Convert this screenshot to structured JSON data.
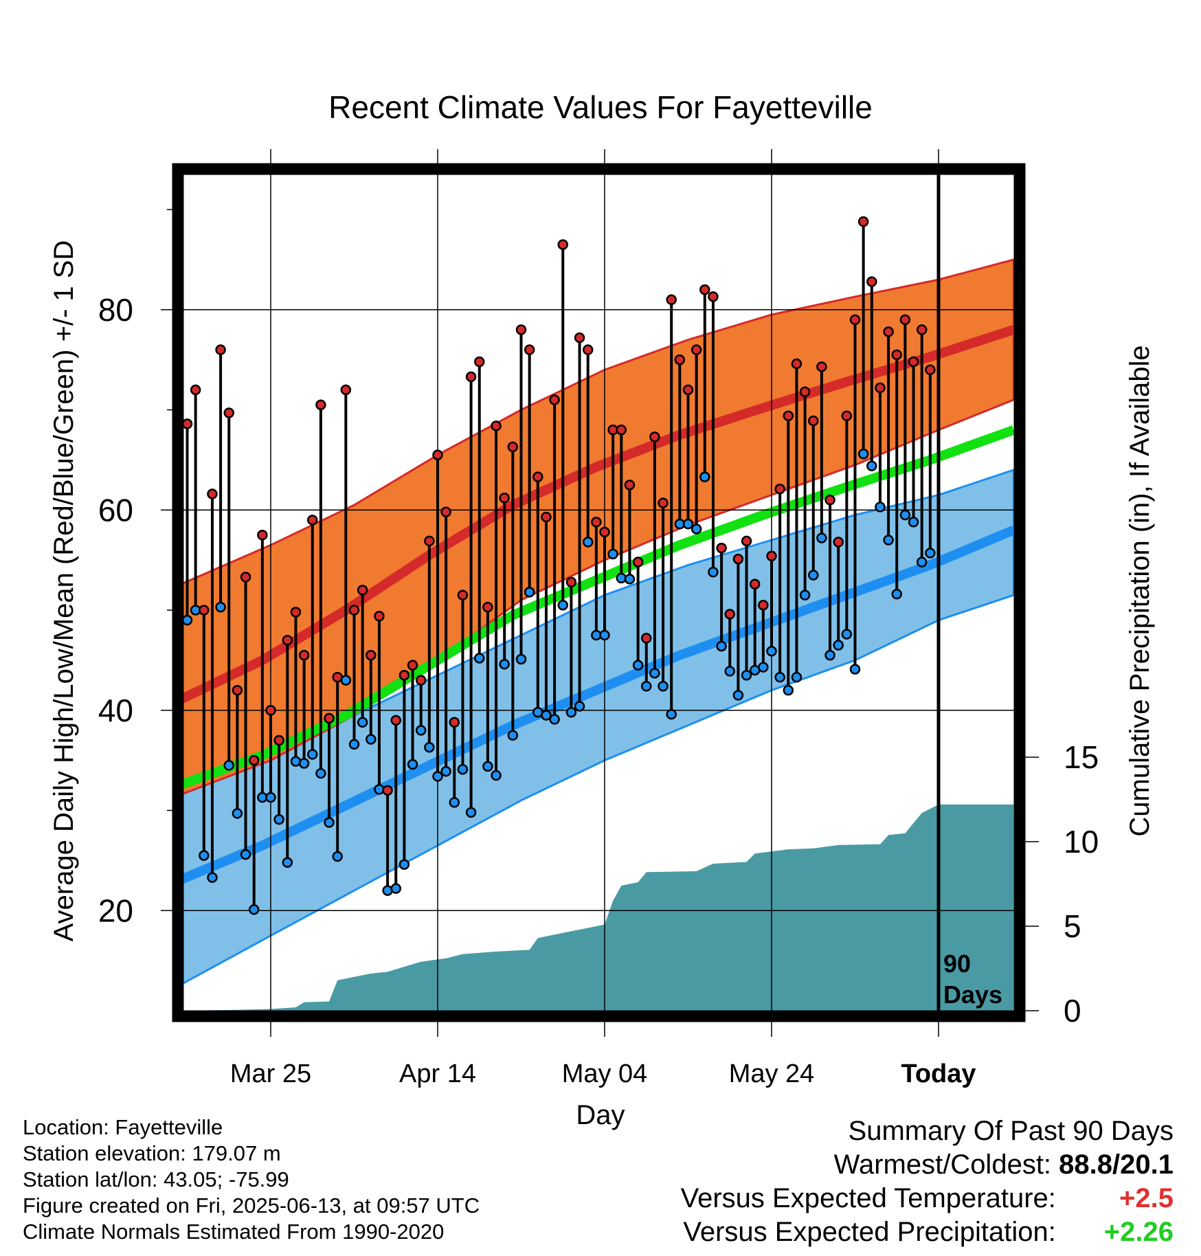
{
  "chart_data": {
    "type": "line",
    "title": "Recent Climate Values For Fayetteville",
    "xlabel": "Day",
    "ylabel": "Average Daily High/Low/Mean (Red/Blue/Green) +/- 1 SD",
    "y2label": "Cumulative Precipitation (in), If Available",
    "ylim": [
      10,
      95
    ],
    "y2lim": [
      0,
      25
    ],
    "yticks": [
      20,
      40,
      60,
      80
    ],
    "y2ticks": [
      0,
      5,
      10,
      15
    ],
    "xticks": [
      {
        "label": "Mar 25",
        "day": 0
      },
      {
        "label": "Apr 14",
        "day": 20
      },
      {
        "label": "May 04",
        "day": 40
      },
      {
        "label": "May 24",
        "day": 60
      },
      {
        "label": "Today",
        "day": 80
      }
    ],
    "grid": true,
    "today_day": 80,
    "today_marker_label": [
      "90",
      "Days"
    ],
    "xrange": [
      -11,
      89
    ],
    "normal_high": [
      [
        -11,
        41
      ],
      [
        -1,
        45
      ],
      [
        9,
        50
      ],
      [
        19,
        55.5
      ],
      [
        29,
        60.5
      ],
      [
        39,
        64.3
      ],
      [
        49,
        67.5
      ],
      [
        59,
        70.2
      ],
      [
        69,
        72.8
      ],
      [
        79,
        75.3
      ],
      [
        89,
        78
      ]
    ],
    "normal_high_upper": [
      [
        -11,
        52.5
      ],
      [
        0,
        56.5
      ],
      [
        10,
        60.5
      ],
      [
        20,
        65.5
      ],
      [
        30,
        70
      ],
      [
        40,
        74
      ],
      [
        50,
        77
      ],
      [
        60,
        79.5
      ],
      [
        70,
        81.3
      ],
      [
        80,
        83
      ],
      [
        89,
        85
      ]
    ],
    "normal_high_lower": [
      [
        -11,
        31.5
      ],
      [
        0,
        35
      ],
      [
        10,
        39.5
      ],
      [
        20,
        45
      ],
      [
        30,
        51
      ],
      [
        40,
        55
      ],
      [
        50,
        58.5
      ],
      [
        60,
        61.5
      ],
      [
        70,
        64.5
      ],
      [
        80,
        68
      ],
      [
        89,
        71
      ]
    ],
    "normal_mean": [
      [
        -11,
        32.5
      ],
      [
        -1,
        35.5
      ],
      [
        9,
        39.5
      ],
      [
        19,
        44.5
      ],
      [
        29,
        49.5
      ],
      [
        39,
        53
      ],
      [
        49,
        56.5
      ],
      [
        59,
        59.5
      ],
      [
        69,
        62.3
      ],
      [
        79,
        65
      ],
      [
        89,
        68
      ]
    ],
    "normal_low": [
      [
        -11,
        23
      ],
      [
        -1,
        26.5
      ],
      [
        9,
        30.5
      ],
      [
        19,
        34.5
      ],
      [
        29,
        38.5
      ],
      [
        39,
        42
      ],
      [
        49,
        45.5
      ],
      [
        59,
        48.5
      ],
      [
        69,
        51.5
      ],
      [
        79,
        54.5
      ],
      [
        89,
        58
      ]
    ],
    "normal_low_upper": [
      [
        -11,
        33.5
      ],
      [
        0,
        36
      ],
      [
        10,
        39.5
      ],
      [
        20,
        43.5
      ],
      [
        30,
        47.5
      ],
      [
        40,
        51.5
      ],
      [
        50,
        54.5
      ],
      [
        60,
        57
      ],
      [
        70,
        59.5
      ],
      [
        80,
        61.5
      ],
      [
        89,
        64
      ]
    ],
    "normal_low_lower": [
      [
        -11,
        12.5
      ],
      [
        0,
        17.5
      ],
      [
        10,
        22
      ],
      [
        20,
        26.5
      ],
      [
        30,
        31
      ],
      [
        40,
        35
      ],
      [
        50,
        38.5
      ],
      [
        60,
        42
      ],
      [
        70,
        45
      ],
      [
        80,
        49
      ],
      [
        89,
        51.5
      ]
    ],
    "series": [
      {
        "name": "High",
        "values": [
          68.6,
          72,
          50,
          61.6,
          76,
          69.7,
          42,
          53.3,
          35,
          57.5,
          40,
          37,
          47,
          49.8,
          45.5,
          59,
          70.5,
          39.2,
          43.3,
          72,
          50,
          52,
          45.5,
          49.4,
          32,
          39,
          43.5,
          44.5,
          43,
          56.9,
          65.5,
          59.8,
          38.8,
          51.5,
          73.3,
          74.8,
          50.3,
          68.4,
          61.2,
          66.3,
          78,
          76,
          63.3,
          59.3,
          71,
          86.5,
          52.8,
          77.2,
          76,
          58.8,
          57.8,
          68,
          68,
          62.5,
          54.8,
          47.2,
          67.3,
          60.7,
          81,
          75,
          72,
          76,
          82,
          81.3,
          56.2,
          49.6,
          55.1,
          56.9,
          52.6,
          50.5,
          55.4,
          62.1,
          69.4,
          74.6,
          71.8,
          68.9,
          74.3,
          61,
          56.8,
          69.4,
          79,
          88.8,
          82.8,
          72.2,
          77.8,
          75.5,
          79,
          74.8,
          78,
          74
        ]
      },
      {
        "name": "Low",
        "values": [
          49,
          50,
          25.5,
          23.3,
          50.3,
          34.5,
          29.7,
          25.6,
          20.1,
          31.3,
          31.3,
          29.1,
          24.8,
          34.9,
          34.7,
          35.6,
          33.7,
          28.8,
          25.4,
          43,
          36.6,
          38.8,
          37.1,
          32.1,
          22,
          22.2,
          24.6,
          34.6,
          38,
          36.3,
          33.4,
          33.9,
          30.8,
          34.1,
          29.8,
          45.2,
          34.4,
          33.5,
          44.6,
          37.5,
          45.1,
          51.8,
          39.8,
          39.5,
          39.1,
          50.5,
          39.8,
          40.4,
          56.8,
          47.5,
          47.5,
          55.6,
          53.2,
          53.1,
          44.5,
          42.4,
          43.7,
          42.4,
          39.6,
          58.6,
          58.6,
          58.1,
          63.3,
          53.8,
          46.4,
          43.9,
          41.5,
          43.5,
          44,
          44.3,
          45.9,
          43.3,
          42,
          43.3,
          51.5,
          53.5,
          57.2,
          45.5,
          46.5,
          47.6,
          44.1,
          65.6,
          64.4,
          60.3,
          57,
          51.6,
          59.5,
          58.8,
          54.8,
          55.7
        ]
      }
    ],
    "precip_cumulative": [
      [
        -11,
        0
      ],
      [
        -4,
        0.05
      ],
      [
        0,
        0.1
      ],
      [
        3,
        0.2
      ],
      [
        4,
        0.5
      ],
      [
        7,
        0.55
      ],
      [
        8,
        1.8
      ],
      [
        10,
        2
      ],
      [
        12,
        2.2
      ],
      [
        14,
        2.3
      ],
      [
        16,
        2.6
      ],
      [
        18,
        2.9
      ],
      [
        21,
        3.1
      ],
      [
        23,
        3.35
      ],
      [
        27,
        3.5
      ],
      [
        31,
        3.6
      ],
      [
        32,
        4.3
      ],
      [
        35,
        4.6
      ],
      [
        38,
        4.9
      ],
      [
        40,
        5.1
      ],
      [
        41,
        6.5
      ],
      [
        42,
        7.4
      ],
      [
        44,
        7.6
      ],
      [
        45,
        8.2
      ],
      [
        51,
        8.25
      ],
      [
        53,
        8.7
      ],
      [
        57,
        8.8
      ],
      [
        58,
        9.3
      ],
      [
        62,
        9.55
      ],
      [
        65,
        9.6
      ],
      [
        68,
        9.8
      ],
      [
        73,
        9.85
      ],
      [
        74,
        10.4
      ],
      [
        76,
        10.5
      ],
      [
        78,
        11.7
      ],
      [
        80,
        12.2
      ],
      [
        89,
        12.2
      ]
    ]
  },
  "footer": {
    "location": "Location: Fayetteville",
    "elevation": "Station elevation: 179.07 m",
    "latlon": "Station lat/lon: 43.05; -75.99",
    "created": "Figure created on Fri, 2025-06-13, at 09:57 UTC",
    "normals": "Climate Normals Estimated From 1990-2020"
  },
  "summary": {
    "heading": "Summary Of Past 90 Days",
    "warmest_label": "Warmest/Coldest:",
    "warmest_value": "88.8/20.1",
    "temp_label": "Versus Expected Temperature:",
    "temp_value": "+2.5",
    "temp_color": "#e03030",
    "precip_label": "Versus Expected Precipitation:",
    "precip_value": "+2.26",
    "precip_color": "#22cc22"
  },
  "colors": {
    "high_band": "#f07a30",
    "high_line": "#d42a2a",
    "low_band": "#80c0e8",
    "low_line": "#1e8ff0",
    "mean_line": "#11e011",
    "precip_fill": "#4a9aa4",
    "high_dot": "#d42a2a",
    "low_dot": "#1e8ff0"
  }
}
